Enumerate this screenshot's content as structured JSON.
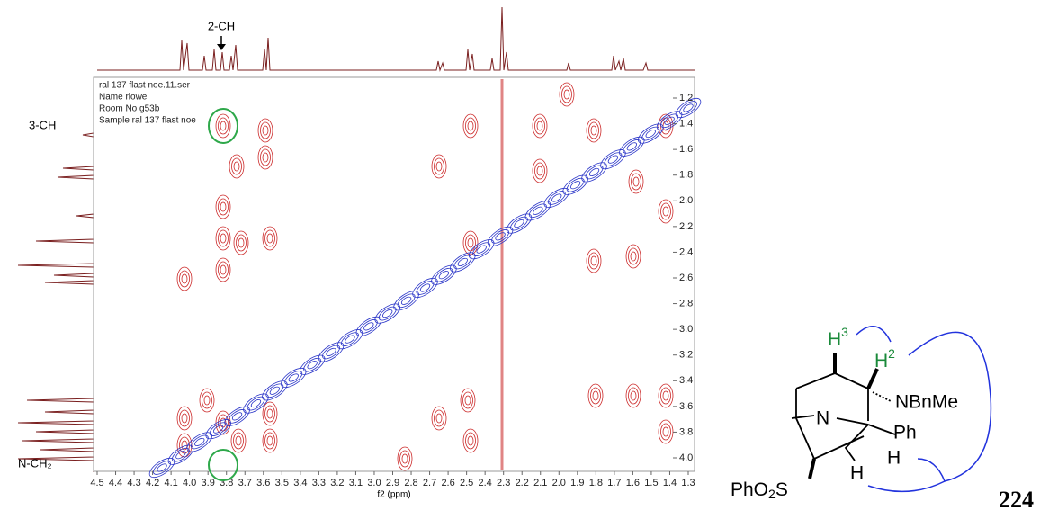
{
  "spectrum": {
    "x_axis_label": "f2 (ppm)",
    "x_ticks": [
      4.5,
      4.4,
      4.3,
      4.2,
      4.1,
      {
        "value": 4,
        "label": "4.0"
      },
      3.9,
      3.8,
      3.7,
      3.6,
      3.5,
      3.4,
      3.3,
      3.2,
      3.1,
      {
        "value": 3,
        "label": "3.0"
      },
      2.9,
      2.8,
      2.7,
      2.6,
      2.5,
      2.4,
      2.3,
      2.2,
      2.1,
      {
        "value": 2,
        "label": "2.0"
      },
      1.9,
      1.8,
      1.7,
      1.6,
      1.5,
      1.4,
      1.3
    ],
    "y_ticks": [
      1.2,
      1.4,
      1.6,
      1.8,
      {
        "value": 2,
        "label": "2.0"
      },
      2.2,
      2.4,
      2.6,
      2.8,
      {
        "value": 3,
        "label": "3.0"
      },
      3.2,
      3.4,
      3.6,
      3.8,
      {
        "value": 4,
        "label": "4.0"
      }
    ],
    "info": [
      "ral 137 flast noe.11.ser",
      "Name rlowe",
      "Room No g53b",
      "Sample ral 137 flast noe"
    ],
    "annotations": {
      "top": "2-CH",
      "left_top": "3-CH",
      "left_bottom": "N-CH₂"
    }
  },
  "structure": {
    "h3": "H",
    "h3_sup": "3",
    "h2": "H",
    "h2_sup": "2",
    "nbnme": "NBnMe",
    "n": "N",
    "ph": "Ph",
    "h_a": "H",
    "h_b": "H",
    "pho2s": [
      "PhO",
      "2",
      "S"
    ],
    "compound": "224"
  }
}
